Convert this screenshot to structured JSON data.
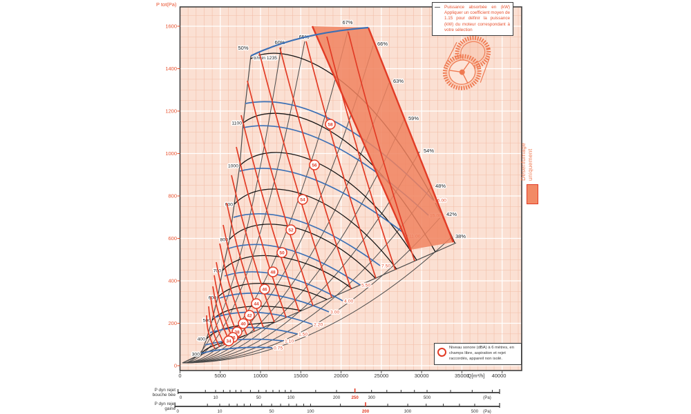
{
  "chart_data": {
    "type": "line",
    "subtype": "fan-performance-map",
    "title": "",
    "x_axis": {
      "unit_label": "Q[m³/h]",
      "ticks": [
        0,
        5000,
        10000,
        15000,
        20000,
        25000,
        30000,
        35000,
        40000
      ],
      "range": [
        0,
        42500
      ],
      "minor_step": 1000
    },
    "y_axis": {
      "title": "P tot(Pa)",
      "ticks": [
        0,
        200,
        400,
        600,
        800,
        1000,
        1200,
        1400,
        1600
      ],
      "range": [
        0,
        1700
      ],
      "minor_step": 50
    },
    "speed_curves_rpm": {
      "unit": "tr/min",
      "labels": [
        "tr/min 1235",
        "1100",
        "1000",
        "900",
        "800",
        "700",
        "600",
        "500",
        "400",
        "300"
      ]
    },
    "efficiency_labels": [
      "50%",
      "60%",
      "65%",
      "67%",
      "66%",
      "63%",
      "59%",
      "54%",
      "48%",
      "42%",
      "38%"
    ],
    "power_curve_labels_kw": [
      "16.00",
      "15.00",
      "11.00",
      "7.50",
      "5.50",
      "4.00",
      "3.00",
      "2.20",
      "1.50",
      "1.10",
      "0.75"
    ],
    "noise_level_labels_dba": [
      "58",
      "56",
      "54",
      "52",
      "50",
      "48",
      "46",
      "44",
      "42",
      "40",
      "38",
      "36",
      "34"
    ],
    "grid": "on",
    "legend_position": "top-right"
  },
  "legend_box": {
    "marker": "—",
    "text": "Puissance absorbée en (kW) Appliquer un coefficient moyen de 1.15 pour définir la puissance (kW) du moteur correspondant à votre sélection"
  },
  "note_box": {
    "text": "Niveau sonore (dBA) à 6 mètres, en champs libre, aspiration et rejet raccordés, appareil non isolé."
  },
  "side_legend": {
    "label": "Désenfumage uniquement"
  },
  "pressure_scales": [
    {
      "name_line1": "P dyn rejet",
      "name_line2": "bouche bée",
      "unit": "(Pa)",
      "labeled_ticks": [
        0,
        10,
        50,
        100,
        200,
        250,
        300,
        500
      ],
      "highlight_value": 250
    },
    {
      "name_line1": "P dyn rejet",
      "name_line2": "gainé",
      "unit": "(Pa)",
      "labeled_ticks": [
        0,
        10,
        50,
        100,
        200,
        300,
        500
      ],
      "highlight_value": 200
    }
  ],
  "colors": {
    "accent_orange": "#e8512e",
    "band_fill": "#f0835f",
    "curve_blue": "#3a6fb5",
    "curve_black": "#141414",
    "line_red": "#e23b25",
    "eff_gray": "#4a4a4a",
    "plot_bg": "#fbe0d3",
    "grid_minor": "#f2bda6",
    "grid_major": "#ffffff",
    "axis_dark": "#333333"
  }
}
